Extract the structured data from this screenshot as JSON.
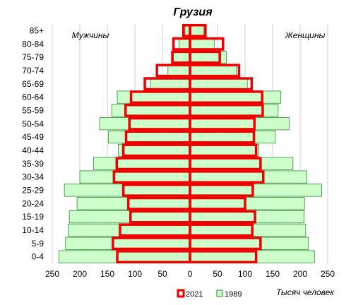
{
  "chart_data": {
    "type": "bar",
    "orientation": "horizontal",
    "subtype": "population-pyramid",
    "title": "Грузия",
    "left_label": "Мужчины",
    "right_label": "Женщины",
    "unit_label": "Тысяч человек",
    "categories": [
      "0-4",
      "5-9",
      "10-14",
      "15-19",
      "20-24",
      "25-29",
      "30-34",
      "35-39",
      "40-44",
      "45-49",
      "50-54",
      "55-59",
      "60-64",
      "65-69",
      "70-74",
      "75-79",
      "80-84",
      "85+"
    ],
    "xlim": [
      -250,
      250
    ],
    "x_ticks": [
      -250,
      -200,
      -150,
      -100,
      -50,
      0,
      50,
      100,
      150,
      200,
      250
    ],
    "x_tick_labels": [
      "250",
      "200",
      "150",
      "100",
      "50",
      "0",
      "50",
      "100",
      "150",
      "200",
      "250"
    ],
    "grid_x": true,
    "legend_position": "bottom",
    "series": [
      {
        "name": "1989",
        "color_fill": "#ccffcc",
        "color_stroke": "#2e8b2e",
        "male": [
          238,
          226,
          221,
          219,
          205,
          228,
          200,
          175,
          130,
          148,
          164,
          142,
          132,
          72,
          40,
          30,
          20,
          9
        ],
        "female": [
          226,
          215,
          210,
          207,
          208,
          239,
          212,
          187,
          125,
          155,
          180,
          160,
          165,
          104,
          84,
          66,
          44,
          25
        ]
      },
      {
        "name": "2021",
        "color_fill": "none",
        "color_stroke": "#ee0000",
        "male": [
          132,
          140,
          127,
          108,
          112,
          121,
          138,
          133,
          121,
          116,
          110,
          117,
          107,
          82,
          60,
          32,
          30,
          12
        ],
        "female": [
          120,
          128,
          113,
          118,
          100,
          114,
          133,
          128,
          120,
          116,
          117,
          132,
          131,
          112,
          89,
          54,
          60,
          28
        ]
      }
    ]
  }
}
